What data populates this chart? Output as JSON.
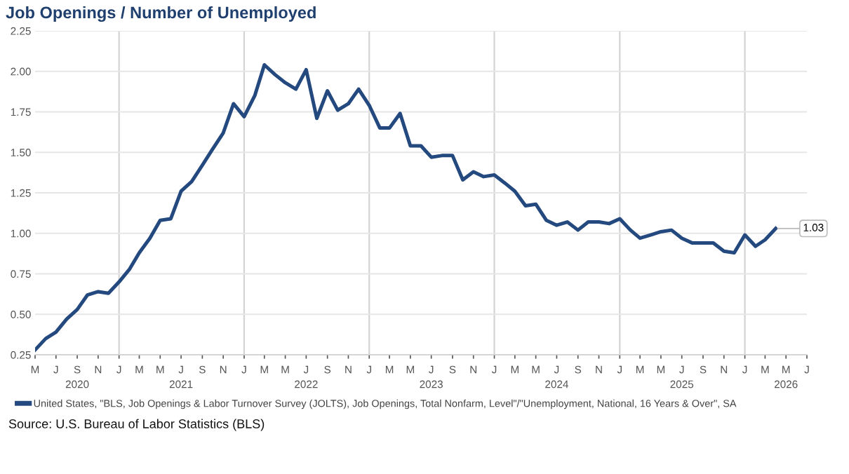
{
  "chart_data": {
    "type": "line",
    "title": "Job Openings / Number of Unemployed",
    "x": [
      "2020-05",
      "2020-06",
      "2020-07",
      "2020-08",
      "2020-09",
      "2020-10",
      "2020-11",
      "2020-12",
      "2021-01",
      "2021-02",
      "2021-03",
      "2021-04",
      "2021-05",
      "2021-06",
      "2021-07",
      "2021-08",
      "2021-09",
      "2021-10",
      "2021-11",
      "2021-12",
      "2022-01",
      "2022-02",
      "2022-03",
      "2022-04",
      "2022-05",
      "2022-06",
      "2022-07",
      "2022-08",
      "2022-09",
      "2022-10",
      "2022-11",
      "2022-12",
      "2023-01",
      "2023-02",
      "2023-03",
      "2023-04",
      "2023-05",
      "2023-06",
      "2023-07",
      "2023-08",
      "2023-09",
      "2023-10",
      "2023-11",
      "2023-12",
      "2024-01",
      "2024-02",
      "2024-03",
      "2024-04",
      "2024-05",
      "2024-06",
      "2024-07",
      "2024-08",
      "2024-09",
      "2024-10",
      "2024-11",
      "2024-12",
      "2025-01",
      "2025-02",
      "2025-03",
      "2025-04",
      "2025-05",
      "2025-06",
      "2025-07",
      "2025-08",
      "2025-09",
      "2025-10",
      "2025-11",
      "2025-12",
      "2026-01",
      "2026-02",
      "2026-03",
      "2026-04"
    ],
    "series": [
      {
        "name": "United States, \"BLS, Job Openings & Labor Turnover Survey (JOLTS), Job Openings, Total Nonfarm, Level\"/\"Unemployment, National, 16 Years & Over\", SA",
        "color": "#23497f",
        "values": [
          0.28,
          0.35,
          0.39,
          0.47,
          0.53,
          0.62,
          0.64,
          0.63,
          0.7,
          0.78,
          0.88,
          0.97,
          1.08,
          1.09,
          1.26,
          1.32,
          1.42,
          1.52,
          1.62,
          1.8,
          1.72,
          1.85,
          2.04,
          1.98,
          1.93,
          1.89,
          2.01,
          1.71,
          1.88,
          1.76,
          1.8,
          1.89,
          1.79,
          1.65,
          1.65,
          1.74,
          1.54,
          1.54,
          1.47,
          1.48,
          1.48,
          1.33,
          1.38,
          1.35,
          1.36,
          1.31,
          1.26,
          1.17,
          1.18,
          1.08,
          1.05,
          1.07,
          1.02,
          1.07,
          1.07,
          1.06,
          1.09,
          1.02,
          0.97,
          0.99,
          1.01,
          1.02,
          0.97,
          0.94,
          0.94,
          0.94,
          0.89,
          0.88,
          0.99,
          0.92,
          0.96,
          1.03
        ]
      }
    ],
    "xlim": [
      "2020-05",
      "2026-07"
    ],
    "xticks": [
      {
        "value": "2020-05",
        "label": "M"
      },
      {
        "value": "2020-07",
        "label": "J"
      },
      {
        "value": "2020-09",
        "label": "S\n2020"
      },
      {
        "value": "2020-11",
        "label": "N"
      },
      {
        "value": "2021-01",
        "label": "J"
      },
      {
        "value": "2021-03",
        "label": "M"
      },
      {
        "value": "2021-05",
        "label": "M"
      },
      {
        "value": "2021-07",
        "label": "J\n2021"
      },
      {
        "value": "2021-09",
        "label": "S"
      },
      {
        "value": "2021-11",
        "label": "N"
      },
      {
        "value": "2022-01",
        "label": "J"
      },
      {
        "value": "2022-03",
        "label": "M"
      },
      {
        "value": "2022-05",
        "label": "M"
      },
      {
        "value": "2022-07",
        "label": "J\n2022"
      },
      {
        "value": "2022-09",
        "label": "S"
      },
      {
        "value": "2022-11",
        "label": "N"
      },
      {
        "value": "2023-01",
        "label": "J"
      },
      {
        "value": "2023-03",
        "label": "M"
      },
      {
        "value": "2023-05",
        "label": "M"
      },
      {
        "value": "2023-07",
        "label": "J\n2023"
      },
      {
        "value": "2023-09",
        "label": "S"
      },
      {
        "value": "2023-11",
        "label": "N"
      },
      {
        "value": "2024-01",
        "label": "J"
      },
      {
        "value": "2024-03",
        "label": "M"
      },
      {
        "value": "2024-05",
        "label": "M"
      },
      {
        "value": "2024-07",
        "label": "J\n2024"
      },
      {
        "value": "2024-09",
        "label": "S"
      },
      {
        "value": "2024-11",
        "label": "N"
      },
      {
        "value": "2025-01",
        "label": "J"
      },
      {
        "value": "2025-03",
        "label": "M"
      },
      {
        "value": "2025-05",
        "label": "M"
      },
      {
        "value": "2025-07",
        "label": "J\n2025"
      },
      {
        "value": "2025-09",
        "label": "S"
      },
      {
        "value": "2025-11",
        "label": "N"
      },
      {
        "value": "2026-01",
        "label": "J"
      },
      {
        "value": "2026-03",
        "label": "M"
      },
      {
        "value": "2026-05",
        "label": "M\n2026"
      },
      {
        "value": "2026-07",
        "label": "J"
      }
    ],
    "ylim": [
      0.25,
      2.25
    ],
    "yticks": [
      {
        "value": 0.25,
        "label": "0.25"
      },
      {
        "value": 0.5,
        "label": "0.50"
      },
      {
        "value": 0.75,
        "label": "0.75"
      },
      {
        "value": 1.0,
        "label": "1.00"
      },
      {
        "value": 1.25,
        "label": "1.25"
      },
      {
        "value": 1.5,
        "label": "1.50"
      },
      {
        "value": 1.75,
        "label": "1.75"
      },
      {
        "value": 2.0,
        "label": "2.00"
      },
      {
        "value": 2.25,
        "label": "2.25"
      }
    ],
    "grid": "y",
    "ref_lines": [
      {
        "axis": "x",
        "value": "2021-01",
        "color": "#d4d4d4"
      },
      {
        "axis": "x",
        "value": "2022-01",
        "color": "#d4d4d4"
      },
      {
        "axis": "x",
        "value": "2023-01",
        "color": "#d4d4d4"
      },
      {
        "axis": "x",
        "value": "2024-01",
        "color": "#d4d4d4"
      },
      {
        "axis": "x",
        "value": "2025-01",
        "color": "#d4d4d4"
      },
      {
        "axis": "x",
        "value": "2026-01",
        "color": "#d4d4d4"
      }
    ],
    "legend": "bottom",
    "annotations": [
      {
        "text": "1.03",
        "x": "2026-04",
        "y": 1.03
      },
      "Source: U.S. Bureau of Labor Statistics (BLS)"
    ]
  }
}
